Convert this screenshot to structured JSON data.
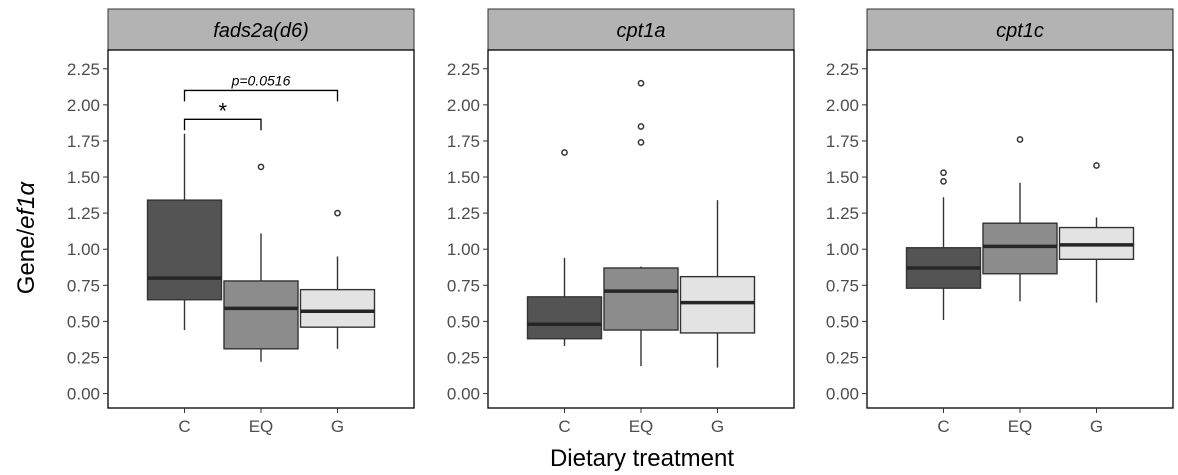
{
  "figure": {
    "ylabel_prefix": "Gene/",
    "ylabel_italic": "ef1α",
    "xlabel": "Dietary treatment"
  },
  "colors": {
    "C": "#545454",
    "EQ": "#8c8c8c",
    "G": "#e3e3e3",
    "strip": "#b3b3b3",
    "median": "#262626"
  },
  "chart_data": [
    {
      "type": "box",
      "panel": "fads2a(d6)",
      "categories": [
        "C",
        "EQ",
        "G"
      ],
      "ylim": [
        -0.1,
        2.38
      ],
      "yticks": [
        "0.00",
        "0.25",
        "0.50",
        "0.75",
        "1.00",
        "1.25",
        "1.50",
        "1.75",
        "2.00",
        "2.25"
      ],
      "grid": false,
      "boxes": [
        {
          "group": "C",
          "min": 0.44,
          "q1": 0.65,
          "median": 0.8,
          "q3": 1.34,
          "max": 1.8,
          "outliers": []
        },
        {
          "group": "EQ",
          "min": 0.22,
          "q1": 0.31,
          "median": 0.59,
          "q3": 0.78,
          "max": 1.11,
          "outliers": [
            1.57
          ]
        },
        {
          "group": "G",
          "min": 0.31,
          "q1": 0.46,
          "median": 0.57,
          "q3": 0.72,
          "max": 0.95,
          "outliers": [
            1.25
          ]
        }
      ],
      "annotations": [
        {
          "from": "C",
          "to": "EQ",
          "y": 1.9,
          "label": "*",
          "italic": false
        },
        {
          "from": "C",
          "to": "G",
          "y": 2.1,
          "label": "p=0.0516",
          "italic": true
        }
      ]
    },
    {
      "type": "box",
      "panel": "cpt1a",
      "categories": [
        "C",
        "EQ",
        "G"
      ],
      "ylim": [
        -0.1,
        2.38
      ],
      "yticks": [
        "0.00",
        "0.25",
        "0.50",
        "0.75",
        "1.00",
        "1.25",
        "1.50",
        "1.75",
        "2.00",
        "2.25"
      ],
      "grid": false,
      "boxes": [
        {
          "group": "C",
          "min": 0.33,
          "q1": 0.38,
          "median": 0.48,
          "q3": 0.67,
          "max": 0.94,
          "outliers": [
            1.67
          ]
        },
        {
          "group": "EQ",
          "min": 0.19,
          "q1": 0.44,
          "median": 0.71,
          "q3": 0.87,
          "max": 0.88,
          "outliers": [
            1.74,
            1.85,
            2.15
          ]
        },
        {
          "group": "G",
          "min": 0.18,
          "q1": 0.42,
          "median": 0.63,
          "q3": 0.81,
          "max": 1.34,
          "outliers": []
        }
      ],
      "annotations": []
    },
    {
      "type": "box",
      "panel": "cpt1c",
      "categories": [
        "C",
        "EQ",
        "G"
      ],
      "ylim": [
        -0.1,
        2.38
      ],
      "yticks": [
        "0.00",
        "0.25",
        "0.50",
        "0.75",
        "1.00",
        "1.25",
        "1.50",
        "1.75",
        "2.00",
        "2.25"
      ],
      "grid": false,
      "boxes": [
        {
          "group": "C",
          "min": 0.51,
          "q1": 0.73,
          "median": 0.87,
          "q3": 1.01,
          "max": 1.36,
          "outliers": [
            1.47,
            1.53
          ]
        },
        {
          "group": "EQ",
          "min": 0.64,
          "q1": 0.83,
          "median": 1.02,
          "q3": 1.18,
          "max": 1.46,
          "outliers": [
            1.76
          ]
        },
        {
          "group": "G",
          "min": 0.63,
          "q1": 0.93,
          "median": 1.03,
          "q3": 1.15,
          "max": 1.22,
          "outliers": [
            1.58
          ]
        }
      ],
      "annotations": []
    }
  ]
}
